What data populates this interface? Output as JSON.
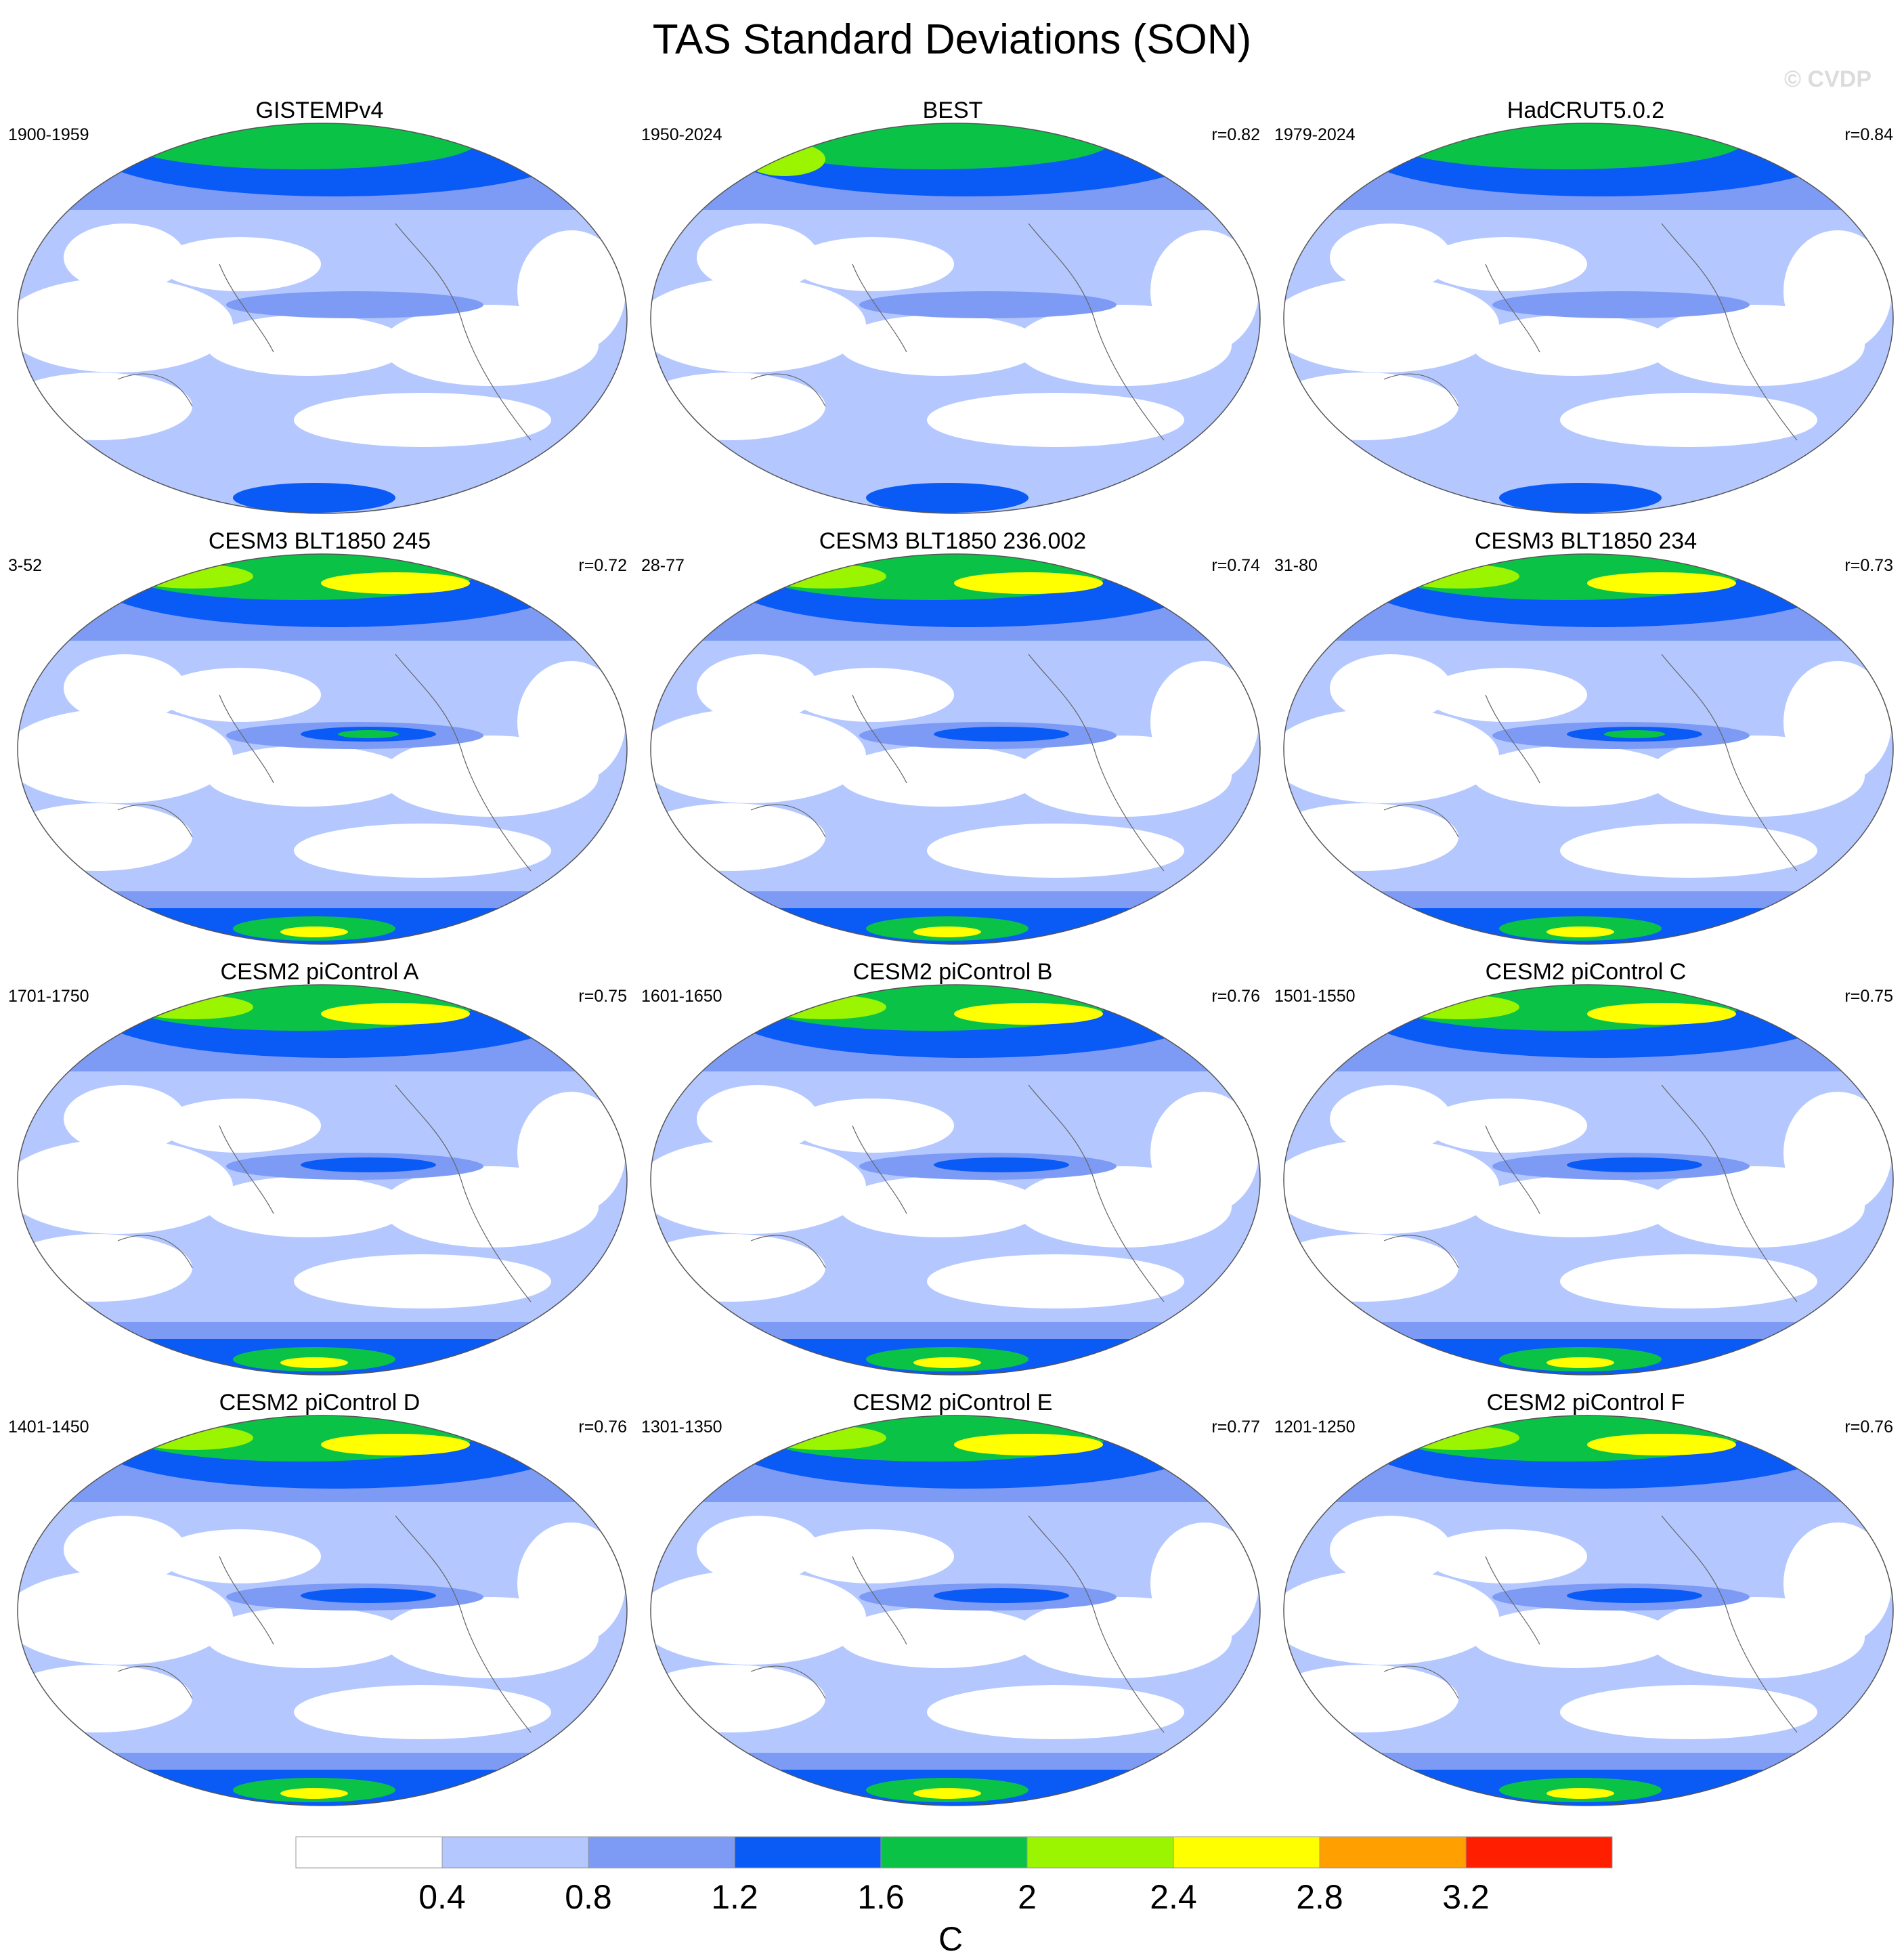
{
  "title": "TAS Standard Deviations (SON)",
  "watermark": "© CVDP",
  "panels": [
    {
      "title": "GISTEMPv4",
      "period": "1900-1959",
      "r": ""
    },
    {
      "title": "BEST",
      "period": "1950-2024",
      "r": "r=0.82"
    },
    {
      "title": "HadCRUT5.0.2",
      "period": "1979-2024",
      "r": "r=0.84"
    },
    {
      "title": "CESM3 BLT1850 245",
      "period": "3-52",
      "r": "r=0.72"
    },
    {
      "title": "CESM3 BLT1850 236.002",
      "period": "28-77",
      "r": "r=0.74"
    },
    {
      "title": "CESM3 BLT1850 234",
      "period": "31-80",
      "r": "r=0.73"
    },
    {
      "title": "CESM2 piControl A",
      "period": "1701-1750",
      "r": "r=0.75"
    },
    {
      "title": "CESM2 piControl B",
      "period": "1601-1650",
      "r": "r=0.76"
    },
    {
      "title": "CESM2 piControl C",
      "period": "1501-1550",
      "r": "r=0.75"
    },
    {
      "title": "CESM2 piControl D",
      "period": "1401-1450",
      "r": "r=0.76"
    },
    {
      "title": "CESM2 piControl E",
      "period": "1301-1350",
      "r": "r=0.77"
    },
    {
      "title": "CESM2 piControl F",
      "period": "1201-1250",
      "r": "r=0.76"
    }
  ],
  "colorbar": {
    "unit": "C",
    "tick_labels": [
      "0.4",
      "0.8",
      "1.2",
      "1.6",
      "2",
      "2.4",
      "2.8",
      "3.2"
    ],
    "colors": [
      "#ffffff",
      "#b4c8ff",
      "#7d9bf5",
      "#0a5af5",
      "#0ac346",
      "#9bf500",
      "#ffff00",
      "#ffa000",
      "#ff1e00"
    ]
  }
}
